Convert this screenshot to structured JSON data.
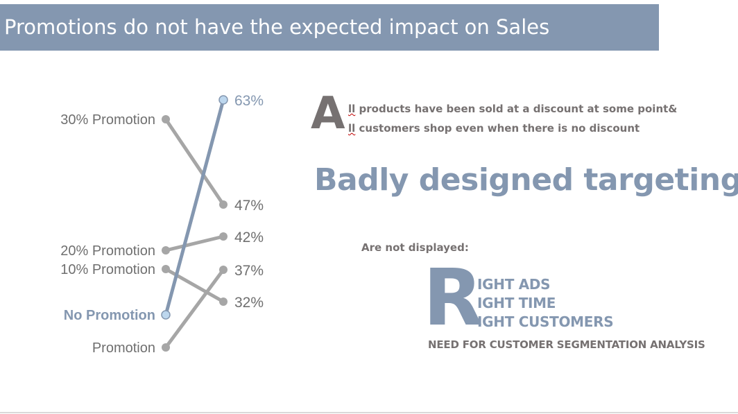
{
  "header": {
    "title": "Promotions do not have the expected impact on Sales"
  },
  "chart_data": {
    "type": "slope",
    "left_labels": [
      "30% Promotion",
      "20% Promotion",
      "10% Promotion",
      "No Promotion",
      "Promotion"
    ],
    "right_labels": [
      "63%",
      "47%",
      "42%",
      "37%",
      "32%"
    ],
    "lines": [
      {
        "from": "30% Promotion",
        "to": "47%",
        "highlight": false
      },
      {
        "from": "20% Promotion",
        "to": "42%",
        "highlight": false
      },
      {
        "from": "10% Promotion",
        "to": "32%",
        "highlight": false
      },
      {
        "from": "No Promotion",
        "to": "63%",
        "highlight": true
      },
      {
        "from": "Promotion",
        "to": "37%",
        "highlight": false
      }
    ],
    "colors": {
      "gray": "#a6a6a6",
      "highlight": "#8497b0",
      "highlight_fill": "#bdd7ee",
      "label": "#6f6f6f"
    }
  },
  "insights": {
    "dropcap_a": "A",
    "line1_rest": "ll",
    "line1_tail": " products have been sold at a discount at some point&",
    "line2_rest": "ll",
    "line2_tail": " customers shop even when there is no discount",
    "headline": "Badly designed targeting",
    "not_displayed": "Are not displayed:",
    "dropcap_r": "R",
    "r_items": [
      "IGHT ADS",
      "IGHT TIME",
      "IGHT CUSTOMERS"
    ],
    "need": "NEED FOR CUSTOMER SEGMENTATION ANALYSIS"
  }
}
